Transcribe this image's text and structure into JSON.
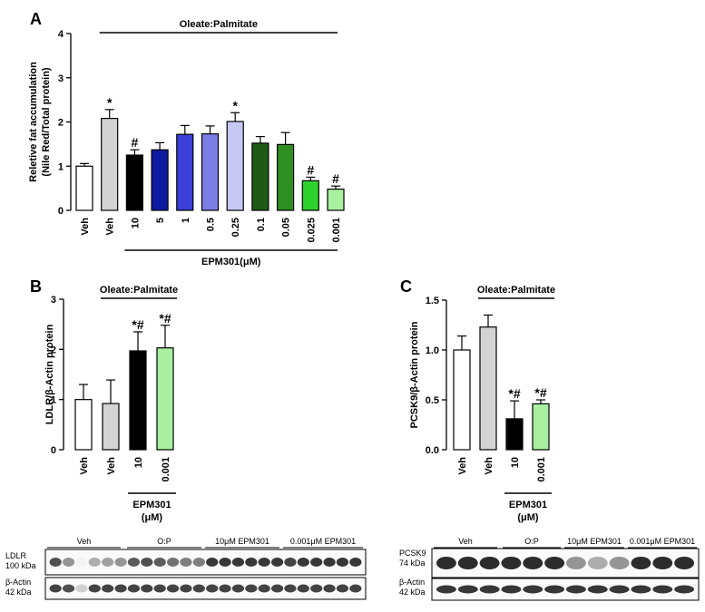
{
  "chart_data": [
    {
      "panel": "A",
      "type": "bar",
      "ylabel_lines": [
        "Reletive fat accumulation",
        "(Nile Red/Total protein)"
      ],
      "ylim": [
        0,
        4
      ],
      "yticks": [
        "0",
        "1",
        "2",
        "3",
        "4"
      ],
      "treatment_label": "Oleate:Palmitate",
      "dose_label": "EPM301(μM)",
      "categories": [
        "Veh",
        "Veh",
        "10",
        "5",
        "1",
        "0.5",
        "0.25",
        "0.1",
        "0.05",
        "0.025",
        "0.001"
      ],
      "values": [
        1.0,
        2.08,
        1.25,
        1.37,
        1.72,
        1.73,
        2.01,
        1.52,
        1.49,
        0.67,
        0.48
      ],
      "errors": [
        0.06,
        0.2,
        0.12,
        0.16,
        0.2,
        0.18,
        0.2,
        0.15,
        0.27,
        0.08,
        0.07
      ],
      "annotations": [
        "",
        "*",
        "#",
        "",
        "",
        "",
        "*",
        "",
        "",
        "#",
        "#"
      ],
      "colors": [
        "#ffffff",
        "#d3d3d3",
        "#000000",
        "#0e1aa0",
        "#3d3fd9",
        "#7c7fe6",
        "#c7c8f5",
        "#1e5c16",
        "#2c8f1f",
        "#2fd12f",
        "#a8f0a0"
      ],
      "grid": false
    },
    {
      "panel": "B",
      "type": "bar",
      "ylabel": "LDLR/β-Actin protein",
      "ylim": [
        0,
        3
      ],
      "yticks": [
        "0",
        "1",
        "2",
        "3"
      ],
      "treatment_label": "Oleate:Palmitate",
      "dose_label_lines": [
        "EPM301",
        "(μM)"
      ],
      "categories": [
        "Veh",
        "Veh",
        "10",
        "0.001"
      ],
      "values": [
        1.0,
        0.92,
        1.97,
        2.03
      ],
      "errors": [
        0.3,
        0.47,
        0.38,
        0.45
      ],
      "annotations": [
        "",
        "",
        "*#",
        "*#"
      ],
      "colors": [
        "#ffffff",
        "#d3d3d3",
        "#000000",
        "#a8f0a0"
      ],
      "grid": false
    },
    {
      "panel": "C",
      "type": "bar",
      "ylabel": "PCSK9/β-Actin protein",
      "ylim": [
        0,
        1.5
      ],
      "yticks": [
        "0.0",
        "0.5",
        "1.0",
        "1.5"
      ],
      "treatment_label": "Oleate:Palmitate",
      "dose_label_lines": [
        "EPM301",
        "(μM)"
      ],
      "categories": [
        "Veh",
        "Veh",
        "10",
        "0.001"
      ],
      "values": [
        1.0,
        1.23,
        0.31,
        0.46
      ],
      "errors": [
        0.14,
        0.12,
        0.18,
        0.04
      ],
      "annotations": [
        "",
        "",
        "*#",
        "*#"
      ],
      "colors": [
        "#ffffff",
        "#d3d3d3",
        "#000000",
        "#a8f0a0"
      ],
      "grid": false
    }
  ],
  "blots": [
    {
      "groups": [
        "Veh",
        "O:P",
        "10μM EPM301",
        "0.001μM EPM301"
      ],
      "rows": [
        {
          "label": "LDLR",
          "kda": "100 kDa",
          "intensities": [
            0.75,
            0.45,
            0.05,
            0.35,
            0.4,
            0.45,
            0.7,
            0.75,
            0.7,
            0.6,
            0.55,
            0.55,
            0.85,
            0.85,
            0.85,
            0.85,
            0.85,
            0.85,
            0.8,
            0.85,
            0.85,
            0.85,
            0.85,
            0.85
          ]
        },
        {
          "label": "β-Actin",
          "kda": "42 kDa",
          "intensities": [
            0.8,
            0.75,
            0.2,
            0.8,
            0.8,
            0.8,
            0.8,
            0.8,
            0.8,
            0.8,
            0.8,
            0.8,
            0.8,
            0.8,
            0.8,
            0.8,
            0.8,
            0.8,
            0.8,
            0.8,
            0.8,
            0.8,
            0.8,
            0.8
          ]
        }
      ]
    },
    {
      "groups": [
        "Veh",
        "O:P",
        "10μM EPM301",
        "0.001μM EPM301"
      ],
      "rows": [
        {
          "label": "PCSK9",
          "kda": "74 kDa",
          "intensities": [
            0.9,
            0.9,
            0.9,
            0.9,
            0.9,
            0.9,
            0.45,
            0.35,
            0.45,
            0.9,
            0.9,
            0.9
          ]
        },
        {
          "label": "β-Actin",
          "kda": "42 kDa",
          "intensities": [
            0.85,
            0.85,
            0.85,
            0.85,
            0.85,
            0.85,
            0.85,
            0.85,
            0.85,
            0.85,
            0.85,
            0.85
          ]
        }
      ]
    }
  ]
}
